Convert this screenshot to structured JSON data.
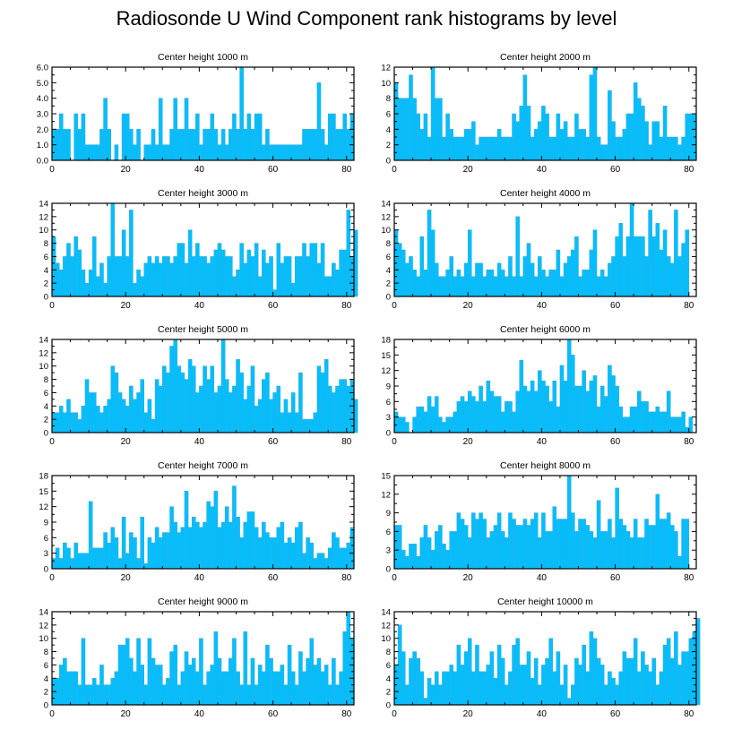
{
  "title": "Radiosonde U Wind Component rank histograms by level",
  "colors": {
    "bar": "#00BFFF",
    "bar_edge": "#3FA8D8",
    "axis": "#000000"
  },
  "chart_data": [
    {
      "type": "bar",
      "title": "Center height 1000 m",
      "xlim": [
        0,
        82
      ],
      "ylim": [
        0,
        6
      ],
      "x_ticks": [
        0,
        20,
        40,
        60,
        80
      ],
      "y_ticks": [
        0,
        1,
        2,
        3,
        4,
        5,
        6
      ],
      "y_tick_labels": [
        "0.0",
        "1.0",
        "2.0",
        "3.0",
        "4.0",
        "5.0",
        "6.0"
      ],
      "values": [
        2,
        2,
        3,
        2,
        2,
        0,
        3,
        2,
        3,
        1,
        1,
        1,
        1,
        2,
        4,
        2,
        0,
        1,
        0,
        3,
        3,
        2,
        1,
        2,
        0,
        1,
        1,
        2,
        1,
        4,
        1,
        1,
        2,
        4,
        2,
        2,
        4,
        2,
        2,
        3,
        1,
        2,
        2,
        3,
        2,
        1,
        2,
        1,
        2,
        3,
        2,
        6,
        2,
        3,
        2,
        3,
        3,
        1,
        2,
        1,
        1,
        1,
        1,
        1,
        1,
        1,
        1,
        1,
        2,
        2,
        2,
        2,
        5,
        2,
        1,
        3,
        3,
        2,
        2,
        3,
        2,
        3
      ]
    },
    {
      "type": "bar",
      "title": "Center height 2000 m",
      "xlim": [
        0,
        82
      ],
      "ylim": [
        0,
        12
      ],
      "x_ticks": [
        0,
        20,
        40,
        60,
        80
      ],
      "y_ticks": [
        0,
        2,
        4,
        6,
        8,
        10,
        12
      ],
      "y_tick_labels": [
        "0",
        "2",
        "4",
        "6",
        "8",
        "10",
        "12"
      ],
      "values": [
        10,
        8,
        8,
        8,
        11,
        8,
        6,
        4,
        6,
        3,
        12,
        8,
        8,
        3,
        6,
        4,
        3,
        3,
        3,
        4,
        4,
        5,
        2,
        3,
        3,
        3,
        3,
        3,
        4,
        3,
        3,
        3,
        6,
        5,
        7,
        11,
        7,
        3,
        4,
        5,
        7,
        6,
        3,
        3,
        6,
        4,
        5,
        3,
        3,
        6,
        4,
        4,
        3,
        11,
        12,
        3,
        2,
        2,
        9,
        5,
        3,
        3,
        4,
        6,
        6,
        10,
        8,
        7,
        5,
        2,
        5,
        5,
        3,
        7,
        3,
        3,
        3,
        2,
        3,
        6,
        6,
        6
      ]
    },
    {
      "type": "bar",
      "title": "Center height 3000 m",
      "xlim": [
        0,
        82
      ],
      "ylim": [
        0,
        14
      ],
      "x_ticks": [
        0,
        20,
        40,
        60,
        80
      ],
      "y_ticks": [
        0,
        2,
        4,
        6,
        8,
        10,
        12,
        14
      ],
      "y_tick_labels": [
        "0",
        "2",
        "4",
        "6",
        "8",
        "10",
        "12",
        "14"
      ],
      "values": [
        9,
        5,
        4,
        6,
        8,
        6,
        9,
        7,
        4,
        2,
        4,
        9,
        3,
        5,
        2,
        6,
        14,
        6,
        6,
        10,
        6,
        13,
        2,
        4,
        3,
        5,
        6,
        5,
        6,
        5,
        6,
        6,
        5,
        6,
        8,
        8,
        5,
        10,
        6,
        8,
        6,
        6,
        5,
        6,
        7,
        8,
        7,
        6,
        6,
        3,
        4,
        8,
        5,
        7,
        6,
        8,
        3,
        7,
        5,
        6,
        1,
        8,
        5,
        6,
        6,
        2,
        6,
        6,
        8,
        6,
        8,
        8,
        5,
        8,
        3,
        3,
        5,
        4,
        7,
        7,
        13,
        6,
        10
      ]
    },
    {
      "type": "bar",
      "title": "Center height 4000 m",
      "xlim": [
        0,
        82
      ],
      "ylim": [
        0,
        14
      ],
      "x_ticks": [
        0,
        20,
        40,
        60,
        80
      ],
      "y_ticks": [
        0,
        2,
        4,
        6,
        8,
        10,
        12,
        14
      ],
      "y_tick_labels": [
        "0",
        "2",
        "4",
        "6",
        "8",
        "10",
        "12",
        "14"
      ],
      "values": [
        10,
        8,
        7,
        5,
        6,
        4,
        3,
        9,
        4,
        13,
        10,
        5,
        3,
        3,
        4,
        6,
        3,
        4,
        3,
        5,
        10,
        3,
        5,
        5,
        3,
        4,
        4,
        3,
        5,
        4,
        3,
        6,
        3,
        12,
        3,
        6,
        8,
        5,
        3,
        6,
        4,
        3,
        4,
        4,
        7,
        3,
        5,
        6,
        7,
        9,
        3,
        4,
        4,
        7,
        10,
        3,
        4,
        3,
        5,
        6,
        9,
        11,
        6,
        9,
        14,
        9,
        9,
        9,
        6,
        13,
        9,
        11,
        7,
        10,
        6,
        5,
        13,
        6,
        8,
        10
      ]
    },
    {
      "type": "bar",
      "title": "Center height 5000 m",
      "xlim": [
        0,
        82
      ],
      "ylim": [
        0,
        14
      ],
      "x_ticks": [
        0,
        20,
        40,
        60,
        80
      ],
      "y_ticks": [
        0,
        2,
        4,
        6,
        8,
        10,
        12,
        14
      ],
      "y_tick_labels": [
        "0",
        "2",
        "4",
        "6",
        "8",
        "10",
        "12",
        "14"
      ],
      "values": [
        3,
        3,
        4,
        3,
        5,
        3,
        3,
        2,
        4,
        8,
        6,
        6,
        4,
        3,
        4,
        5,
        10,
        9,
        6,
        5,
        4,
        7,
        5,
        6,
        8,
        3,
        5,
        2,
        8,
        7,
        10,
        9,
        13,
        14,
        10,
        9,
        8,
        11,
        10,
        6,
        7,
        10,
        8,
        10,
        6,
        7,
        14,
        8,
        6,
        7,
        11,
        9,
        5,
        7,
        10,
        4,
        5,
        8,
        9,
        5,
        6,
        7,
        3,
        5,
        3,
        6,
        3,
        9,
        2,
        2,
        2,
        3,
        10,
        9,
        11,
        7,
        6,
        7,
        8,
        8,
        7,
        8,
        5
      ]
    },
    {
      "type": "bar",
      "title": "Center height 6000 m",
      "xlim": [
        0,
        82
      ],
      "ylim": [
        0,
        18
      ],
      "x_ticks": [
        0,
        20,
        40,
        60,
        80
      ],
      "y_ticks": [
        0,
        3,
        6,
        9,
        12,
        15,
        18
      ],
      "y_tick_labels": [
        "0",
        "3",
        "6",
        "9",
        "12",
        "15",
        "18"
      ],
      "values": [
        4,
        3,
        3,
        2,
        0,
        3,
        5,
        5,
        4,
        7,
        5,
        7,
        3,
        2,
        3,
        3,
        4,
        6,
        7,
        6,
        8,
        7,
        6,
        9,
        6,
        10,
        8,
        7,
        7,
        4,
        6,
        6,
        4,
        8,
        14,
        9,
        8,
        10,
        8,
        12,
        10,
        9,
        6,
        10,
        5,
        13,
        10,
        18,
        15,
        9,
        9,
        12,
        8,
        10,
        11,
        5,
        9,
        7,
        13,
        11,
        9,
        5,
        3,
        3,
        5,
        5,
        8,
        6,
        6,
        4,
        4,
        5,
        4,
        4,
        8,
        3,
        3,
        3,
        4,
        1,
        3
      ]
    },
    {
      "type": "bar",
      "title": "Center height 7000 m",
      "xlim": [
        0,
        82
      ],
      "ylim": [
        0,
        18
      ],
      "x_ticks": [
        0,
        20,
        40,
        60,
        80
      ],
      "y_ticks": [
        0,
        3,
        6,
        9,
        12,
        15,
        18
      ],
      "y_tick_labels": [
        "0",
        "3",
        "6",
        "9",
        "12",
        "15",
        "18"
      ],
      "values": [
        2,
        4,
        2,
        5,
        4,
        2,
        5,
        3,
        3,
        3,
        13,
        4,
        4,
        4,
        7,
        5,
        8,
        6,
        2,
        10,
        3,
        7,
        6,
        2,
        10,
        1,
        6,
        5,
        8,
        6,
        7,
        7,
        12,
        9,
        7,
        8,
        15,
        8,
        10,
        9,
        8,
        9,
        13,
        12,
        15,
        8,
        9,
        12,
        9,
        16,
        10,
        6,
        9,
        11,
        11,
        8,
        6,
        9,
        7,
        6,
        6,
        8,
        9,
        5,
        6,
        5,
        8,
        9,
        3,
        6,
        5,
        2,
        3,
        3,
        2,
        4,
        7,
        6,
        4,
        4,
        5,
        8
      ]
    },
    {
      "type": "bar",
      "title": "Center height 8000 m",
      "xlim": [
        0,
        82
      ],
      "ylim": [
        0,
        15
      ],
      "x_ticks": [
        0,
        20,
        40,
        60,
        80
      ],
      "y_ticks": [
        0,
        3,
        6,
        9,
        12,
        15
      ],
      "y_tick_labels": [
        "0",
        "3",
        "6",
        "9",
        "12",
        "15"
      ],
      "values": [
        7,
        7,
        3,
        2,
        4,
        4,
        2,
        5,
        7,
        5,
        3,
        6,
        7,
        4,
        3,
        6,
        6,
        9,
        8,
        7,
        5,
        9,
        8,
        9,
        8,
        5,
        6,
        7,
        9,
        6,
        5,
        9,
        8,
        7,
        7,
        8,
        7,
        8,
        9,
        5,
        9,
        6,
        6,
        10,
        8,
        8,
        8,
        15,
        9,
        6,
        8,
        8,
        7,
        6,
        5,
        11,
        6,
        6,
        8,
        5,
        13,
        8,
        7,
        6,
        5,
        8,
        5,
        5,
        8,
        7,
        7,
        12,
        8,
        8,
        9,
        7,
        6,
        2,
        8,
        8
      ]
    },
    {
      "type": "bar",
      "title": "Center height 9000 m",
      "xlim": [
        0,
        82
      ],
      "ylim": [
        0,
        14
      ],
      "x_ticks": [
        0,
        20,
        40,
        60,
        80
      ],
      "y_ticks": [
        0,
        2,
        4,
        6,
        8,
        10,
        12,
        14
      ],
      "y_tick_labels": [
        "0",
        "2",
        "4",
        "6",
        "8",
        "10",
        "12",
        "14"
      ],
      "values": [
        4,
        4,
        6,
        7,
        5,
        5,
        5,
        3,
        10,
        3,
        3,
        4,
        3,
        6,
        3,
        3,
        4,
        5,
        9,
        9,
        10,
        7,
        5,
        10,
        6,
        3,
        10,
        7,
        6,
        6,
        3,
        4,
        8,
        9,
        3,
        5,
        8,
        6,
        7,
        5,
        10,
        3,
        5,
        6,
        11,
        7,
        5,
        5,
        7,
        10,
        5,
        3,
        11,
        3,
        7,
        3,
        6,
        5,
        9,
        7,
        5,
        5,
        6,
        3,
        9,
        5,
        3,
        8,
        5,
        7,
        10,
        6,
        7,
        5,
        6,
        3,
        7,
        3,
        5,
        11,
        14,
        10
      ]
    },
    {
      "type": "bar",
      "title": "Center height 10000 m",
      "xlim": [
        0,
        82
      ],
      "ylim": [
        0,
        14
      ],
      "x_ticks": [
        0,
        20,
        40,
        60,
        80
      ],
      "y_ticks": [
        0,
        2,
        4,
        6,
        8,
        10,
        12,
        14
      ],
      "y_tick_labels": [
        "0",
        "2",
        "4",
        "6",
        "8",
        "10",
        "12",
        "14"
      ],
      "values": [
        6,
        12,
        8,
        3,
        7,
        8,
        7,
        5,
        1,
        4,
        3,
        5,
        3,
        5,
        5,
        6,
        5,
        9,
        6,
        8,
        10,
        5,
        9,
        5,
        5,
        6,
        8,
        4,
        9,
        7,
        3,
        5,
        9,
        10,
        6,
        6,
        8,
        4,
        7,
        3,
        6,
        7,
        10,
        5,
        8,
        3,
        6,
        1,
        3,
        7,
        6,
        9,
        5,
        11,
        10,
        7,
        6,
        3,
        5,
        4,
        3,
        5,
        8,
        7,
        7,
        10,
        5,
        8,
        6,
        5,
        7,
        3,
        5,
        9,
        10,
        7,
        11,
        6,
        8,
        8,
        10,
        11,
        13
      ]
    }
  ]
}
